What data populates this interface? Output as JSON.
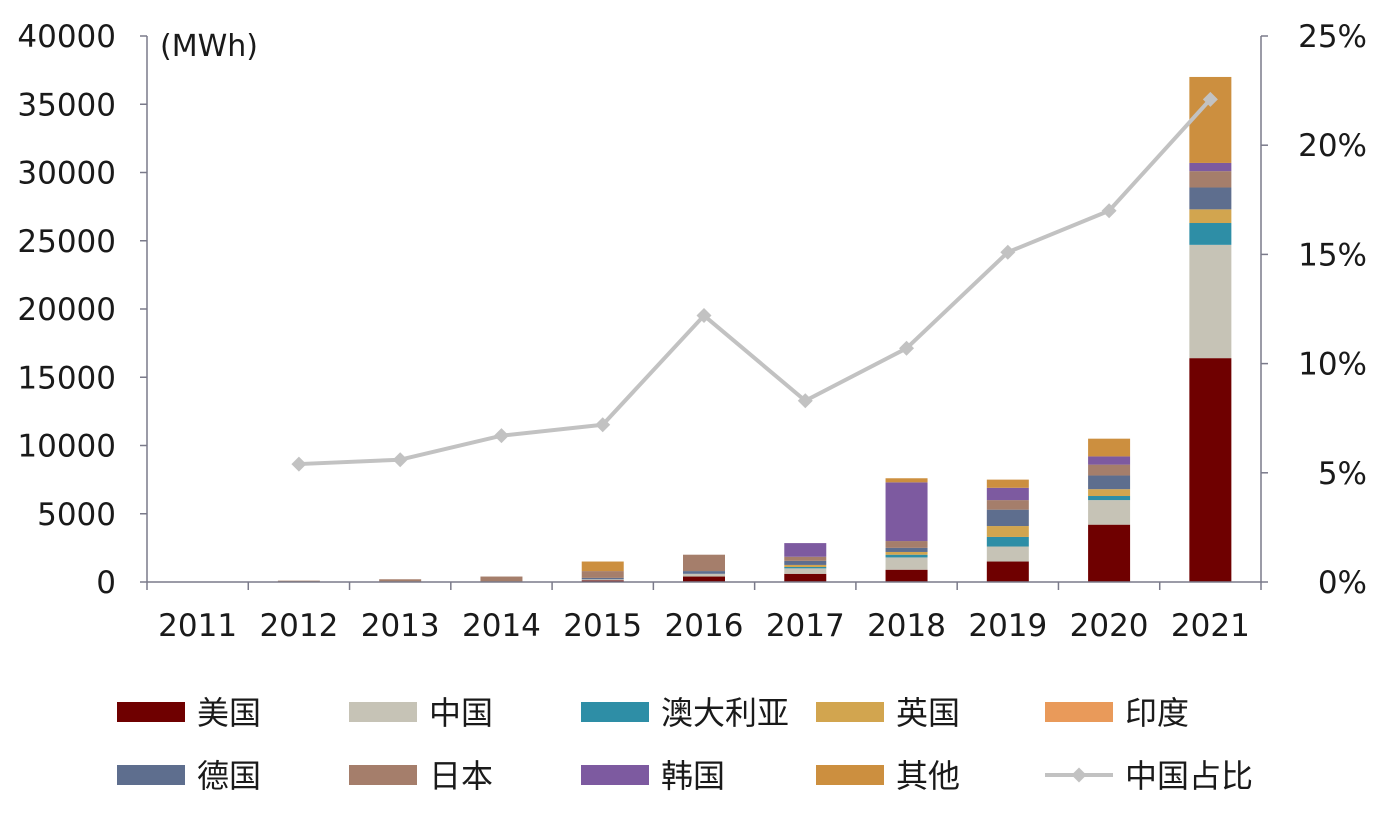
{
  "chart_data": {
    "type": "bar",
    "stacked": true,
    "unit_label": "(MWh)",
    "categories": [
      "2011",
      "2012",
      "2013",
      "2014",
      "2015",
      "2016",
      "2017",
      "2018",
      "2019",
      "2020",
      "2021"
    ],
    "y_left": {
      "min": 0,
      "max": 40000,
      "ticks": [
        "0",
        "5000",
        "10000",
        "15000",
        "20000",
        "25000",
        "30000",
        "35000",
        "40000"
      ]
    },
    "y_right": {
      "min": 0,
      "max": 25,
      "ticks": [
        "0%",
        "5%",
        "10%",
        "15%",
        "20%",
        "25%"
      ]
    },
    "series": [
      {
        "name": "美国",
        "color": "#6f0000",
        "values": [
          0,
          0,
          0,
          0,
          120,
          400,
          600,
          900,
          1500,
          4200,
          16400
        ]
      },
      {
        "name": "中国",
        "color": "#c6c3b6",
        "values": [
          0,
          0,
          0,
          0,
          80,
          200,
          400,
          900,
          1100,
          1800,
          8300
        ]
      },
      {
        "name": "澳大利亚",
        "color": "#2e8ea6",
        "values": [
          0,
          0,
          0,
          0,
          0,
          0,
          100,
          200,
          700,
          300,
          1600
        ]
      },
      {
        "name": "英国",
        "color": "#d2a54f",
        "values": [
          0,
          0,
          0,
          0,
          0,
          0,
          150,
          200,
          800,
          500,
          1000
        ]
      },
      {
        "name": "印度",
        "color": "#e99a5a",
        "values": [
          0,
          0,
          0,
          0,
          0,
          0,
          0,
          0,
          0,
          0,
          0
        ]
      },
      {
        "name": "德国",
        "color": "#5e6e8e",
        "values": [
          0,
          0,
          0,
          0,
          100,
          200,
          300,
          300,
          1200,
          1000,
          1600
        ]
      },
      {
        "name": "日本",
        "color": "#a57e6b",
        "values": [
          30,
          100,
          200,
          400,
          500,
          1200,
          300,
          500,
          700,
          800,
          1200
        ]
      },
      {
        "name": "韩国",
        "color": "#7d5aa0",
        "values": [
          0,
          0,
          0,
          0,
          0,
          0,
          1000,
          4300,
          900,
          600,
          600
        ]
      },
      {
        "name": "其他",
        "color": "#cc8f3f",
        "values": [
          0,
          0,
          0,
          0,
          700,
          0,
          0,
          300,
          600,
          1300,
          6300
        ]
      }
    ],
    "line_series": {
      "name": "中国占比",
      "color": "#c2c2c2",
      "axis": "right",
      "values": [
        null,
        5.4,
        5.6,
        6.7,
        7.2,
        12.2,
        8.3,
        10.7,
        15.1,
        17.0,
        22.1
      ]
    },
    "legend": {
      "position": "bottom",
      "order": [
        "美国",
        "中国",
        "澳大利亚",
        "英国",
        "印度",
        "德国",
        "日本",
        "韩国",
        "其他",
        "中国占比"
      ]
    }
  }
}
